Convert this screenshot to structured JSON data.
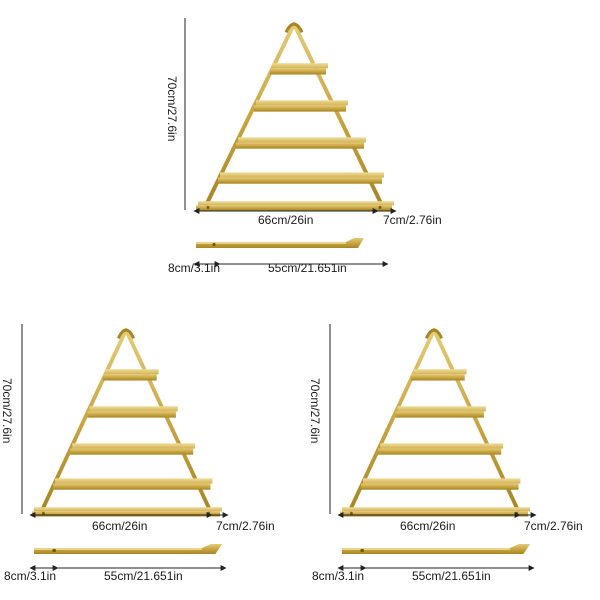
{
  "figures": [
    {
      "height_label": "70cm/27.6in",
      "width_label": "66cm/26in",
      "depth_label": "7cm/2.76in",
      "hook_label": "8cm/3.1in",
      "bar_label": "55cm/21.651in"
    },
    {
      "height_label": "70cm/27.6in",
      "width_label": "66cm/26in",
      "depth_label": "7cm/2.76in",
      "hook_label": "8cm/3.1in",
      "bar_label": "55cm/21.651in"
    },
    {
      "height_label": "70cm/27.6in",
      "width_label": "66cm/26in",
      "depth_label": "7cm/2.76in",
      "hook_label": "8cm/3.1in",
      "bar_label": "55cm/21.651in"
    }
  ],
  "colors": {
    "gold_light": "#d8bd5e",
    "gold": "#c9a642",
    "gold_dark": "#a88524",
    "dimension_line": "#222222"
  }
}
